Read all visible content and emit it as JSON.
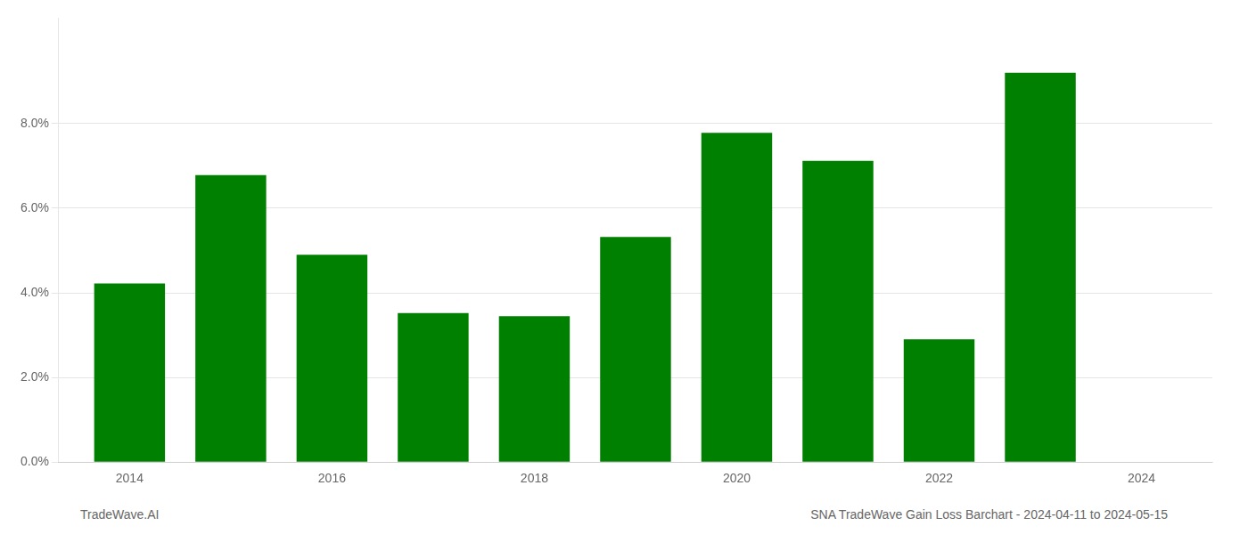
{
  "chart_data": {
    "type": "bar",
    "x": [
      2014,
      2015,
      2016,
      2017,
      2018,
      2019,
      2020,
      2021,
      2022,
      2023
    ],
    "values": [
      0.0422,
      0.0678,
      0.049,
      0.0352,
      0.0345,
      0.0532,
      0.0778,
      0.0712,
      0.029,
      0.092
    ],
    "color": "#008000",
    "xlim": [
      2013.3,
      2024.7
    ],
    "xticks": [
      2014,
      2016,
      2018,
      2020,
      2022,
      2024
    ],
    "ylim": [
      0,
      0.105
    ],
    "yticks": [
      {
        "value": 0.0,
        "label": "0.0%"
      },
      {
        "value": 0.02,
        "label": "2.0%"
      },
      {
        "value": 0.04,
        "label": "4.0%"
      },
      {
        "value": 0.06,
        "label": "6.0%"
      },
      {
        "value": 0.08,
        "label": "8.0%"
      }
    ],
    "grid": "y",
    "annotations": [
      "TradeWave.AI",
      "SNA TradeWave Gain Loss Barchart - 2024-04-11 to 2024-05-15"
    ]
  }
}
